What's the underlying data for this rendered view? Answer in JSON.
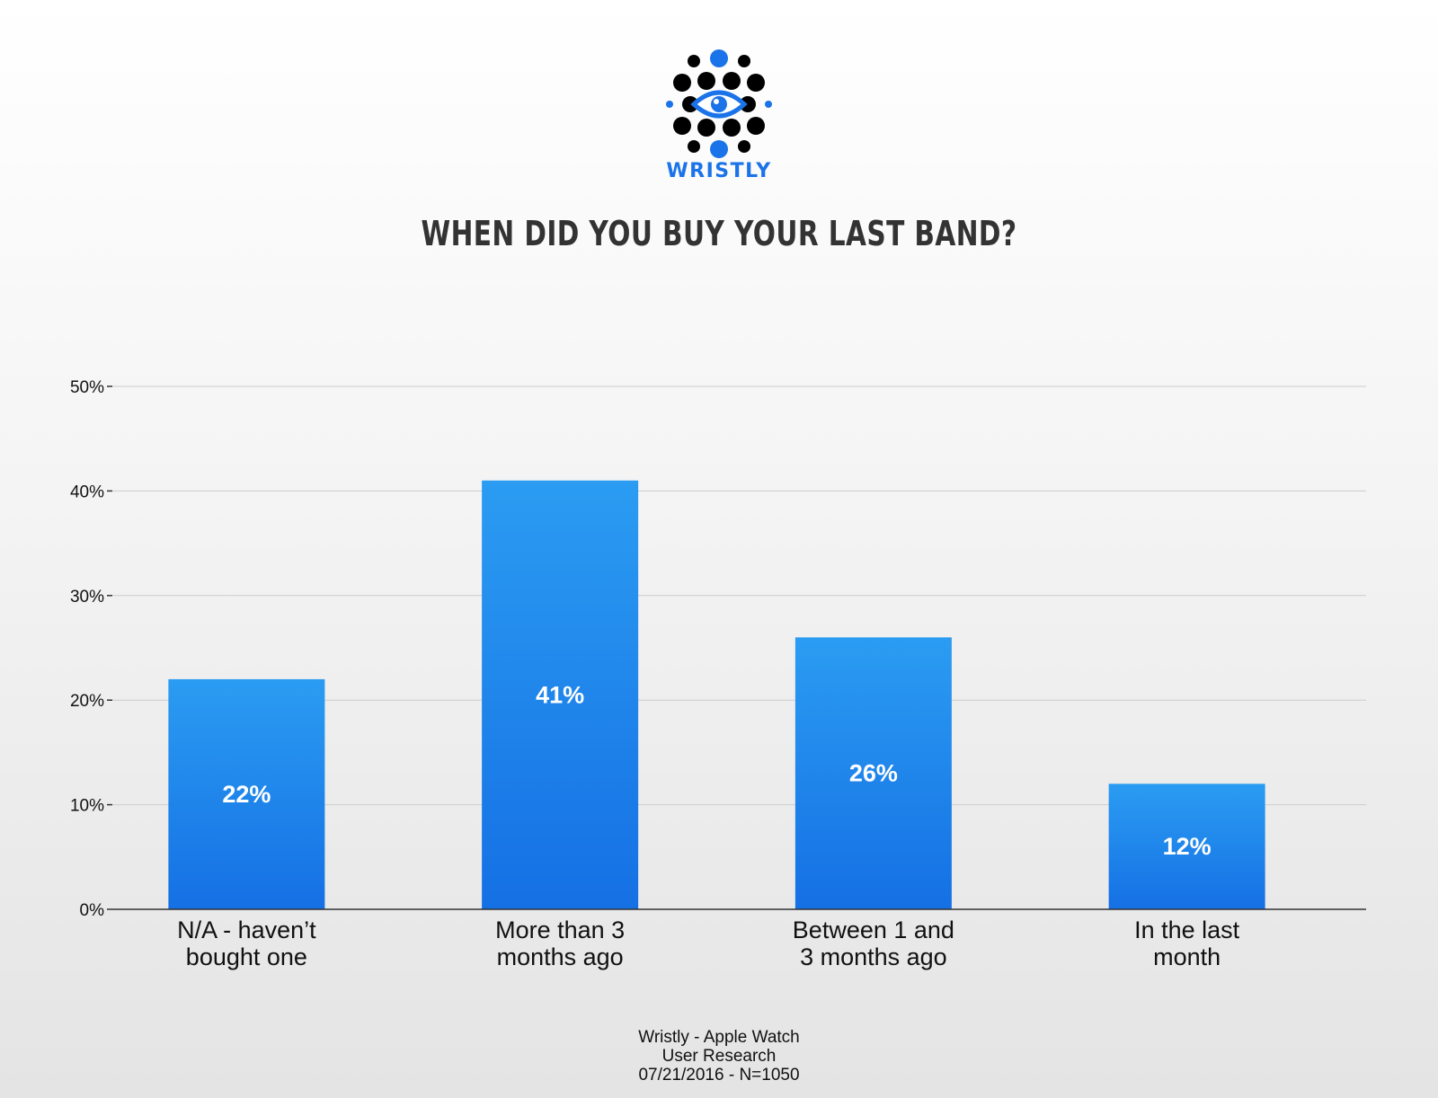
{
  "brand": {
    "name": "WRISTLY",
    "logo_icon": "eye-dots-icon",
    "accent_color": "#1a73e8",
    "dot_color": "#000000"
  },
  "chart_data": {
    "type": "bar",
    "title": "WHEN DID YOU BUY YOUR LAST BAND?",
    "categories": [
      [
        "N/A - haven’t",
        "bought one"
      ],
      [
        "More than 3",
        "months ago"
      ],
      [
        "Between 1 and",
        "3 months ago"
      ],
      [
        "In the last",
        "month"
      ]
    ],
    "values": [
      22,
      41,
      26,
      12
    ],
    "data_labels": [
      "22%",
      "41%",
      "26%",
      "12%"
    ],
    "ylim": [
      0,
      50
    ],
    "yticks": [
      0,
      10,
      20,
      30,
      40,
      50
    ],
    "ytick_labels": [
      "0%",
      "10%",
      "20%",
      "30%",
      "40%",
      "50%"
    ],
    "grid": true,
    "legend": "none",
    "bar_color_top": "#2b9cf2",
    "bar_color_bottom": "#1570e4"
  },
  "footer": {
    "line1": "Wristly - Apple Watch",
    "line2": "User Research",
    "line3": "07/21/2016 - N=1050"
  }
}
